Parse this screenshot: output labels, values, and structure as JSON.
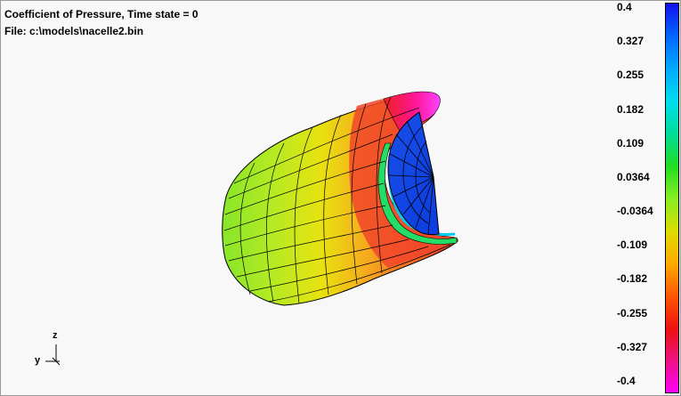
{
  "header": {
    "title_line": "Coefficient of Pressure, Time state = 0",
    "file_line": "File: c:\\models\\nacelle2.bin"
  },
  "axes_triad": {
    "z_label": "z",
    "y_label": "y"
  },
  "legend": {
    "ticks": [
      "0.4",
      "0.327",
      "0.255",
      "0.182",
      "0.109",
      "0.0364",
      "-0.0364",
      "-0.109",
      "-0.182",
      "-0.255",
      "-0.327",
      "-0.4"
    ],
    "colors": [
      "#1111ee",
      "#0066ff",
      "#00aaff",
      "#00ddee",
      "#00dd99",
      "#22dd22",
      "#88ee22",
      "#dddd00",
      "#ffaa00",
      "#ff5500",
      "#ee1111",
      "#ee1188",
      "#ff00ff"
    ]
  }
}
